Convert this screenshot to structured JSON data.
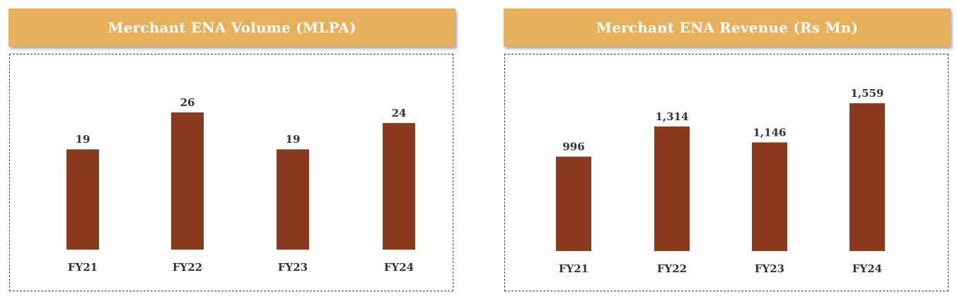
{
  "chart_data": [
    {
      "type": "bar",
      "title": "Merchant ENA Volume (MLPA)",
      "categories": [
        "FY21",
        "FY22",
        "FY23",
        "FY24"
      ],
      "values": [
        19,
        26,
        19,
        24
      ],
      "value_labels": [
        "19",
        "26",
        "19",
        "24"
      ],
      "ylim": [
        0,
        30
      ],
      "grid": false,
      "color": "#8b391f"
    },
    {
      "type": "bar",
      "title": "Merchant ENA Revenue (Rs Mn)",
      "categories": [
        "FY21",
        "FY22",
        "FY23",
        "FY24"
      ],
      "values": [
        996,
        1314,
        1146,
        1559
      ],
      "value_labels": [
        "996",
        "1,314",
        "1,146",
        "1,559"
      ],
      "ylim": [
        0,
        1800
      ],
      "grid": false,
      "color": "#8b391f"
    }
  ],
  "theme": {
    "header_bg": "#e8b05a",
    "header_text": "#ffffff",
    "bar_color": "#8b391f",
    "label_color": "#333333"
  }
}
